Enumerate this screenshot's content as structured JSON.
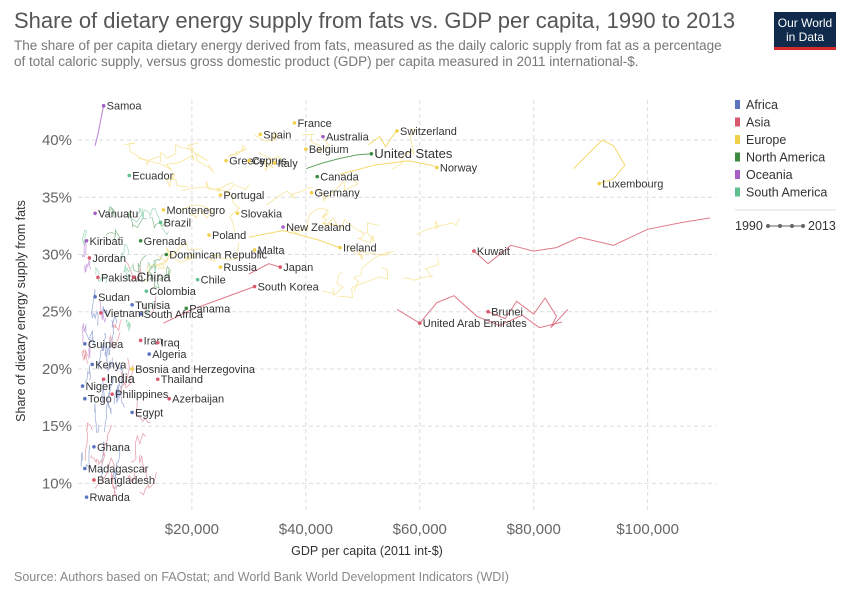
{
  "header": {
    "title": "Share of dietary energy supply from fats vs. GDP per capita, 1990 to 2013",
    "subtitle": "The share of per capita dietary energy derived from fats, measured as the daily caloric supply from fat as a percentage of total caloric supply, versus gross domestic product (GDP) per capita measured in 2011 international-$.",
    "logo_line1": "Our World",
    "logo_line2": "in Data"
  },
  "footer": {
    "source": "Source: Authors based on FAOstat; and World Bank World Development Indicators (WDI)"
  },
  "chart_data": {
    "type": "scatter",
    "title": "Share of dietary energy supply from fats vs. GDP per capita, 1990 to 2013",
    "xlabel": "GDP per capita (2011 int-$)",
    "ylabel": "Share of dietary energy supply from fats",
    "xlim": [
      0,
      112000
    ],
    "ylim": [
      7.5,
      43.5
    ],
    "x_ticks": [
      {
        "value": 20000,
        "label": "$20,000"
      },
      {
        "value": 40000,
        "label": "$40,000"
      },
      {
        "value": 60000,
        "label": "$60,000"
      },
      {
        "value": 80000,
        "label": "$80,000"
      },
      {
        "value": 100000,
        "label": "$100,000"
      }
    ],
    "y_ticks": [
      {
        "value": 10,
        "label": "10%"
      },
      {
        "value": 15,
        "label": "15%"
      },
      {
        "value": 20,
        "label": "20%"
      },
      {
        "value": 25,
        "label": "25%"
      },
      {
        "value": 30,
        "label": "30%"
      },
      {
        "value": 35,
        "label": "35%"
      },
      {
        "value": 40,
        "label": "40%"
      }
    ],
    "grid": true,
    "legend_position": "right",
    "legend": [
      {
        "name": "Africa",
        "color": "#5b74bd"
      },
      {
        "name": "Asia",
        "color": "#d8596b"
      },
      {
        "name": "Europe",
        "color": "#f2d04a"
      },
      {
        "name": "North America",
        "color": "#3c8a3f"
      },
      {
        "name": "Oceania",
        "color": "#a65fc7"
      },
      {
        "name": "South America",
        "color": "#5fbf8f"
      }
    ],
    "time_range": {
      "start": "1990",
      "end": "2013"
    },
    "labeled_points": [
      {
        "label": "Samoa",
        "region": "Oceania",
        "x": 4500,
        "y": 43
      },
      {
        "label": "France",
        "region": "Europe",
        "x": 38000,
        "y": 41.5
      },
      {
        "label": "Spain",
        "region": "Europe",
        "x": 32000,
        "y": 40.5
      },
      {
        "label": "Australia",
        "region": "Oceania",
        "x": 43000,
        "y": 40.3
      },
      {
        "label": "Switzerland",
        "region": "Europe",
        "x": 56000,
        "y": 40.8
      },
      {
        "label": "Belgium",
        "region": "Europe",
        "x": 40000,
        "y": 39.2
      },
      {
        "label": "United States",
        "region": "North America",
        "x": 51500,
        "y": 38.8
      },
      {
        "label": "Greece",
        "region": "Europe",
        "x": 26000,
        "y": 38.2
      },
      {
        "label": "Cyprus",
        "region": "Europe",
        "x": 30000,
        "y": 38.2
      },
      {
        "label": "Italy",
        "region": "Europe",
        "x": 34500,
        "y": 38.0
      },
      {
        "label": "Norway",
        "region": "Europe",
        "x": 63000,
        "y": 37.6
      },
      {
        "label": "Ecuador",
        "region": "South America",
        "x": 9000,
        "y": 36.9
      },
      {
        "label": "Canada",
        "region": "North America",
        "x": 42000,
        "y": 36.8
      },
      {
        "label": "Luxembourg",
        "region": "Europe",
        "x": 91500,
        "y": 36.2
      },
      {
        "label": "Germany",
        "region": "Europe",
        "x": 41000,
        "y": 35.4
      },
      {
        "label": "Portugal",
        "region": "Europe",
        "x": 25000,
        "y": 35.2
      },
      {
        "label": "Montenegro",
        "region": "Europe",
        "x": 15000,
        "y": 33.9
      },
      {
        "label": "Vanuatu",
        "region": "Oceania",
        "x": 3000,
        "y": 33.6
      },
      {
        "label": "Slovakia",
        "region": "Europe",
        "x": 28000,
        "y": 33.6
      },
      {
        "label": "Brazil",
        "region": "South America",
        "x": 14500,
        "y": 32.8
      },
      {
        "label": "New Zealand",
        "region": "Oceania",
        "x": 36000,
        "y": 32.4
      },
      {
        "label": "Poland",
        "region": "Europe",
        "x": 23000,
        "y": 31.7
      },
      {
        "label": "Kiribati",
        "region": "Oceania",
        "x": 1500,
        "y": 31.2
      },
      {
        "label": "Grenada",
        "region": "North America",
        "x": 11000,
        "y": 31.2
      },
      {
        "label": "Ireland",
        "region": "Europe",
        "x": 46000,
        "y": 30.6
      },
      {
        "label": "Malta",
        "region": "Europe",
        "x": 31000,
        "y": 30.4
      },
      {
        "label": "Kuwait",
        "region": "Asia",
        "x": 69500,
        "y": 30.3
      },
      {
        "label": "Dominican Republic",
        "region": "North America",
        "x": 15500,
        "y": 30.0
      },
      {
        "label": "Jordan",
        "region": "Asia",
        "x": 2000,
        "y": 29.7
      },
      {
        "label": "Russia",
        "region": "Europe",
        "x": 25000,
        "y": 28.9
      },
      {
        "label": "Japan",
        "region": "Asia",
        "x": 35500,
        "y": 28.9
      },
      {
        "label": "Pakistan",
        "region": "Asia",
        "x": 3500,
        "y": 28.0
      },
      {
        "label": "China",
        "region": "Asia",
        "x": 9800,
        "y": 28.0
      },
      {
        "label": "Chile",
        "region": "South America",
        "x": 21000,
        "y": 27.8
      },
      {
        "label": "South Korea",
        "region": "Asia",
        "x": 31000,
        "y": 27.2
      },
      {
        "label": "Colombia",
        "region": "South America",
        "x": 12000,
        "y": 26.8
      },
      {
        "label": "Sudan",
        "region": "Africa",
        "x": 3000,
        "y": 26.3
      },
      {
        "label": "Tunisia",
        "region": "Africa",
        "x": 9500,
        "y": 25.6
      },
      {
        "label": "Panama",
        "region": "North America",
        "x": 19000,
        "y": 25.3
      },
      {
        "label": "Brunei",
        "region": "Asia",
        "x": 72000,
        "y": 25.0
      },
      {
        "label": "South Africa",
        "region": "Africa",
        "x": 11000,
        "y": 24.8
      },
      {
        "label": "Vietnam",
        "region": "Asia",
        "x": 4000,
        "y": 24.9
      },
      {
        "label": "United Arab Emirates",
        "region": "Asia",
        "x": 60000,
        "y": 24.0
      },
      {
        "label": "Guinea",
        "region": "Africa",
        "x": 1200,
        "y": 22.2
      },
      {
        "label": "Iran",
        "region": "Asia",
        "x": 11000,
        "y": 22.5
      },
      {
        "label": "Iraq",
        "region": "Asia",
        "x": 14000,
        "y": 22.3
      },
      {
        "label": "Algeria",
        "region": "Africa",
        "x": 12500,
        "y": 21.3
      },
      {
        "label": "Kenya",
        "region": "Africa",
        "x": 2500,
        "y": 20.4
      },
      {
        "label": "Bosnia and Herzegovina",
        "region": "Europe",
        "x": 9500,
        "y": 20.0
      },
      {
        "label": "India",
        "region": "Asia",
        "x": 4500,
        "y": 19.1
      },
      {
        "label": "Thailand",
        "region": "Asia",
        "x": 14000,
        "y": 19.1
      },
      {
        "label": "Niger",
        "region": "Africa",
        "x": 800,
        "y": 18.5
      },
      {
        "label": "Philippines",
        "region": "Asia",
        "x": 6000,
        "y": 17.8
      },
      {
        "label": "Togo",
        "region": "Africa",
        "x": 1200,
        "y": 17.4
      },
      {
        "label": "Azerbaijan",
        "region": "Asia",
        "x": 16000,
        "y": 17.4
      },
      {
        "label": "Egypt",
        "region": "Africa",
        "x": 9500,
        "y": 16.2
      },
      {
        "label": "Ghana",
        "region": "Africa",
        "x": 2800,
        "y": 13.2
      },
      {
        "label": "Madagascar",
        "region": "Africa",
        "x": 1200,
        "y": 11.3
      },
      {
        "label": "Bangladesh",
        "region": "Asia",
        "x": 2800,
        "y": 10.3
      },
      {
        "label": "Rwanda",
        "region": "Africa",
        "x": 1500,
        "y": 8.8
      }
    ],
    "labeled_trajectories": [
      {
        "label": "Luxembourg",
        "region": "Europe",
        "points": [
          [
            87000,
            37.5
          ],
          [
            90000,
            39
          ],
          [
            92000,
            40
          ],
          [
            94000,
            39.5
          ],
          [
            96000,
            37.8
          ],
          [
            94000,
            36.6
          ],
          [
            91500,
            36.2
          ]
        ]
      },
      {
        "label": "Kuwait",
        "region": "Asia",
        "points": [
          [
            69500,
            30.3
          ],
          [
            72000,
            29.2
          ],
          [
            76000,
            30.8
          ],
          [
            80000,
            30.3
          ],
          [
            84000,
            30.6
          ],
          [
            88000,
            31.5
          ],
          [
            94000,
            30.8
          ],
          [
            100000,
            32.2
          ],
          [
            106000,
            32.8
          ],
          [
            111000,
            33.2
          ]
        ]
      },
      {
        "label": "Brunei",
        "region": "Asia",
        "points": [
          [
            72000,
            25.0
          ],
          [
            75000,
            24.4
          ],
          [
            77000,
            25.9
          ],
          [
            80000,
            24.8
          ],
          [
            82000,
            26.2
          ],
          [
            84000,
            24.6
          ],
          [
            83000,
            23.6
          ],
          [
            86000,
            25.2
          ]
        ]
      },
      {
        "label": "United Arab Emirates",
        "region": "Asia",
        "points": [
          [
            56000,
            25.2
          ],
          [
            60000,
            24.0
          ],
          [
            63000,
            25.8
          ],
          [
            66000,
            26.4
          ],
          [
            70000,
            24.6
          ],
          [
            74000,
            23.8
          ],
          [
            78000,
            24.7
          ],
          [
            81000,
            23.6
          ],
          [
            85000,
            24.1
          ]
        ]
      },
      {
        "label": "Switzerland",
        "region": "Europe",
        "points": [
          [
            51000,
            39.6
          ],
          [
            53000,
            40.3
          ],
          [
            54000,
            39.4
          ],
          [
            55000,
            40.2
          ],
          [
            56000,
            40.8
          ]
        ]
      },
      {
        "label": "United States",
        "region": "North America",
        "points": [
          [
            40000,
            37.5
          ],
          [
            43000,
            38
          ],
          [
            46000,
            38.4
          ],
          [
            49000,
            38.7
          ],
          [
            51500,
            38.8
          ]
        ]
      },
      {
        "label": "Norway",
        "region": "Europe",
        "points": [
          [
            46000,
            37.0
          ],
          [
            52000,
            37.8
          ],
          [
            58000,
            38.2
          ],
          [
            62000,
            37.8
          ],
          [
            63000,
            37.6
          ]
        ]
      },
      {
        "label": "Ireland",
        "region": "Europe",
        "points": [
          [
            30000,
            31.5
          ],
          [
            36000,
            32.1
          ],
          [
            42000,
            31.3
          ],
          [
            46000,
            30.6
          ]
        ]
      },
      {
        "label": "Japan",
        "region": "Asia",
        "points": [
          [
            30000,
            28.3
          ],
          [
            32000,
            28.8
          ],
          [
            33500,
            29.2
          ],
          [
            35500,
            28.9
          ]
        ]
      },
      {
        "label": "South Korea",
        "region": "Asia",
        "points": [
          [
            15000,
            24.0
          ],
          [
            20000,
            25.2
          ],
          [
            25000,
            26.1
          ],
          [
            31000,
            27.2
          ]
        ]
      },
      {
        "label": "Samoa",
        "region": "Oceania",
        "points": [
          [
            3000,
            39.5
          ],
          [
            3500,
            40.5
          ],
          [
            4000,
            41.8
          ],
          [
            4500,
            43.0
          ]
        ]
      }
    ]
  }
}
